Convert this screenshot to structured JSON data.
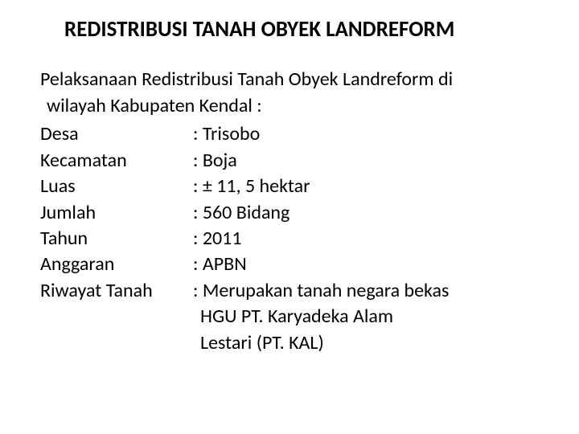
{
  "title": "REDISTRIBUSI TANAH OBYEK LANDREFORM",
  "intro_line1": "Pelaksanaan Redistribusi Tanah Obyek Landreform di",
  "intro_line2": "wilayah Kabupaten Kendal :",
  "rows": [
    {
      "label": "Desa",
      "value": ": Trisobo"
    },
    {
      "label": "Kecamatan",
      "value": ": Boja"
    },
    {
      "label": "Luas",
      "value": ": ± 11, 5 hektar"
    },
    {
      "label": "Jumlah",
      "value": ": 560 Bidang"
    },
    {
      "label": "Tahun",
      "value": ": 2011"
    },
    {
      "label": "Anggaran",
      "value": ": APBN"
    },
    {
      "label": "Riwayat Tanah",
      "value": ": Merupakan tanah negara bekas"
    }
  ],
  "continuation": [
    "HGU PT. Karyadeka Alam",
    "Lestari (PT. KAL)"
  ],
  "colors": {
    "background": "#ffffff",
    "text": "#000000"
  },
  "typography": {
    "title_fontsize": 27,
    "body_fontsize": 24,
    "title_weight": "bold",
    "body_weight": "normal",
    "font_family": "Calibri"
  }
}
